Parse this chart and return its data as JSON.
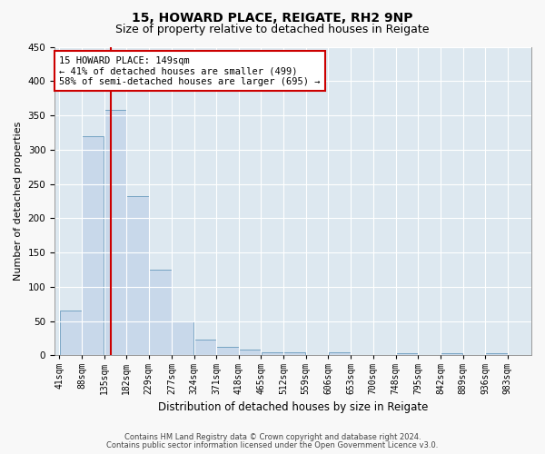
{
  "title": "15, HOWARD PLACE, REIGATE, RH2 9NP",
  "subtitle": "Size of property relative to detached houses in Reigate",
  "xlabel": "Distribution of detached houses by size in Reigate",
  "ylabel": "Number of detached properties",
  "footer_line1": "Contains HM Land Registry data © Crown copyright and database right 2024.",
  "footer_line2": "Contains public sector information licensed under the Open Government Licence v3.0.",
  "bar_edges": [
    41,
    88,
    135,
    182,
    229,
    277,
    324,
    371,
    418,
    465,
    512,
    559,
    606,
    653,
    700,
    748,
    795,
    842,
    889,
    936,
    983
  ],
  "bar_heights": [
    65,
    320,
    358,
    232,
    125,
    50,
    23,
    13,
    8,
    5,
    4,
    0,
    4,
    0,
    0,
    3,
    0,
    3,
    0,
    3
  ],
  "bar_color": "#c8d8ea",
  "bar_edge_color": "#6699bb",
  "property_size": 149,
  "red_line_color": "#cc0000",
  "annotation_line1": "15 HOWARD PLACE: 149sqm",
  "annotation_line2": "← 41% of detached houses are smaller (499)",
  "annotation_line3": "58% of semi-detached houses are larger (695) →",
  "annotation_box_color": "#ffffff",
  "annotation_box_edge_color": "#cc0000",
  "ylim": [
    0,
    450
  ],
  "yticks": [
    0,
    50,
    100,
    150,
    200,
    250,
    300,
    350,
    400,
    450
  ],
  "background_color": "#dde8f0",
  "grid_color": "#ffffff",
  "fig_background": "#f8f8f8",
  "title_fontsize": 10,
  "subtitle_fontsize": 9,
  "tick_label_fontsize": 7,
  "ylabel_fontsize": 8,
  "xlabel_fontsize": 8.5,
  "annotation_fontsize": 7.5
}
